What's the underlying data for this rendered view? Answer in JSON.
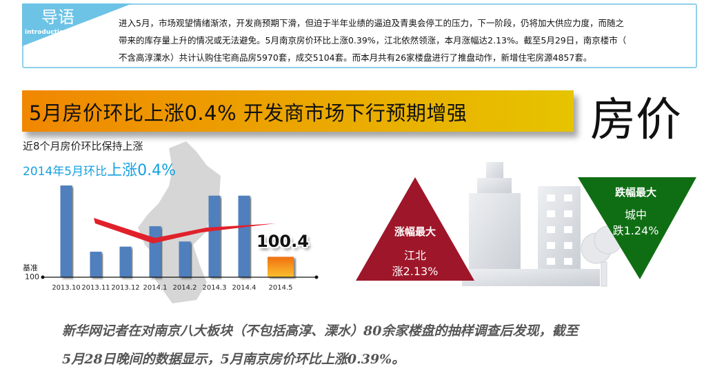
{
  "intro": {
    "tab_cn": "导语",
    "tab_en": "introduction",
    "lines": [
      "进入5月，市场观望情绪渐浓，开发商预期下滑，但迫于半年业绩的逼迫及青奥会停工的压力，下一阶段，仍将加大供应力度，而随之",
      "带来的库存量上升的情况或无法避免。5月南京房价环比上涨0.39%，江北依然领涨，本月涨幅达2.13%。截至5月29日，南京楼市（",
      "不含高淳溧水）共计认购住宅商品房5970套，成交5104套。而本月共有26家楼盘进行了推盘动作，新增住宅房源4857套。"
    ]
  },
  "banner": {
    "text": "5月房价环比上涨0.4% 开发商市场下行预期增强",
    "section_title": "房价"
  },
  "chart_data": {
    "type": "bar",
    "title": "近8个月房价环比保持上涨",
    "subtitle_prefix": "2014年5月环比",
    "subtitle_highlight": "上涨0.4%",
    "baseline_label_1": "基准",
    "baseline_label_2": "100",
    "categories": [
      "2013.10",
      "2013.11",
      "2013.12",
      "2014.1",
      "2014.2",
      "2014.3",
      "2014.4",
      "2014.5"
    ],
    "values": [
      101.8,
      100.5,
      100.6,
      101.0,
      100.7,
      101.6,
      101.6,
      100.4
    ],
    "highlight_label": "100.4",
    "ylim": [
      100,
      102
    ],
    "colors": {
      "bar": "#4f7fbd",
      "highlight_bar_top": "#f07010",
      "highlight_bar_bottom": "#fbc030",
      "trend": "#e0202a"
    }
  },
  "rise": {
    "title": "涨幅最大",
    "area": "江北",
    "value": "涨2.13%",
    "color": "#9e1629"
  },
  "fall": {
    "title": "跌幅最大",
    "area": "城中",
    "value": "跌1.24%",
    "color": "#0f6e14"
  },
  "bottom": {
    "lines": [
      "新华网记者在对南京八大板块（不包括高淳、溧水）80余家楼盘的抽样调查后发现，截至",
      "5月28日晚间的数据显示，5月南京房价环比上涨0.39%。"
    ]
  }
}
